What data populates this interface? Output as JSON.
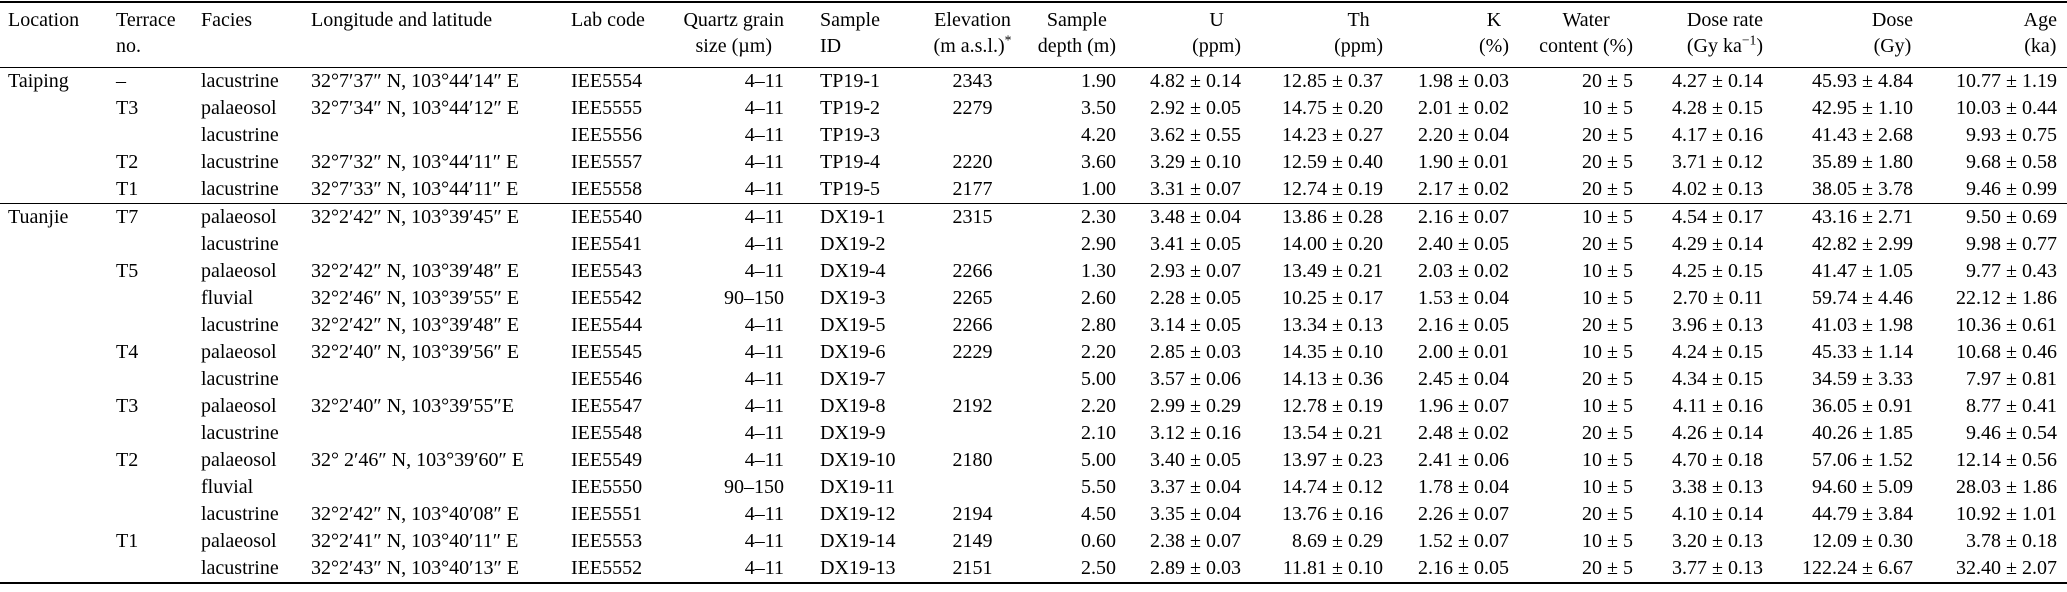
{
  "table": {
    "title": "Luminescence dating sample table",
    "group_separator_before_row_index": 5,
    "columns": [
      {
        "id": "location",
        "line1": "Location",
        "line2": "",
        "align": "left"
      },
      {
        "id": "terrace-no",
        "line1": "Terrace",
        "line2": "no.",
        "align": "left"
      },
      {
        "id": "facies",
        "line1": "Facies",
        "line2": "",
        "align": "left"
      },
      {
        "id": "coordinates",
        "line1": "Longitude and latitude",
        "line2": "",
        "align": "left"
      },
      {
        "id": "lab-code",
        "line1": "Lab code",
        "line2": "",
        "align": "left"
      },
      {
        "id": "grain-size",
        "line1": "Quartz grain",
        "line2": "size (µm)",
        "align": "right"
      },
      {
        "id": "sample-id",
        "line1": "Sample",
        "line2": "ID",
        "align": "left"
      },
      {
        "id": "elevation",
        "line1": "Elevation",
        "line2": "(m a.s.l.)",
        "line2_sup": "*",
        "align": "center"
      },
      {
        "id": "depth",
        "line1": "Sample",
        "line2": "depth (m)",
        "align": "right"
      },
      {
        "id": "u",
        "line1": "U",
        "line2": "(ppm)",
        "align": "right"
      },
      {
        "id": "th",
        "line1": "Th",
        "line2": "(ppm)",
        "align": "right"
      },
      {
        "id": "k",
        "line1": "K",
        "line2": "(%)",
        "align": "right"
      },
      {
        "id": "water-content",
        "line1": "Water",
        "line2": "content (%)",
        "align": "right"
      },
      {
        "id": "dose-rate",
        "line1": "Dose rate",
        "line2": "(Gy ka",
        "line2_sup": "−1",
        "line2_post": ")",
        "align": "right"
      },
      {
        "id": "dose",
        "line1": "Dose",
        "line2": "(Gy)",
        "align": "right"
      },
      {
        "id": "age",
        "line1": "Age",
        "line2": "(ka)",
        "align": "right"
      }
    ],
    "rows": [
      [
        "Taiping",
        "–",
        "lacustrine",
        "32°7′37″ N, 103°44′14″ E",
        "IEE5554",
        "4–11",
        "TP19-1",
        "2343",
        "1.90",
        "4.82 ± 0.14",
        "12.85 ± 0.37",
        "1.98 ± 0.03",
        "20 ± 5",
        "4.27 ± 0.14",
        "45.93 ± 4.84",
        "10.77 ± 1.19"
      ],
      [
        "",
        "T3",
        "palaeosol",
        "32°7′34″ N, 103°44′12″ E",
        "IEE5555",
        "4–11",
        "TP19-2",
        "2279",
        "3.50",
        "2.92 ± 0.05",
        "14.75 ± 0.20",
        "2.01 ± 0.02",
        "10 ± 5",
        "4.28 ± 0.15",
        "42.95 ± 1.10",
        "10.03 ± 0.44"
      ],
      [
        "",
        "",
        "lacustrine",
        "",
        "IEE5556",
        "4–11",
        "TP19-3",
        "",
        "4.20",
        "3.62 ± 0.55",
        "14.23 ± 0.27",
        "2.20 ± 0.04",
        "20 ± 5",
        "4.17 ± 0.16",
        "41.43 ± 2.68",
        "9.93 ± 0.75"
      ],
      [
        "",
        "T2",
        "lacustrine",
        "32°7′32″ N, 103°44′11″ E",
        "IEE5557",
        "4–11",
        "TP19-4",
        "2220",
        "3.60",
        "3.29 ± 0.10",
        "12.59 ± 0.40",
        "1.90 ± 0.01",
        "20 ± 5",
        "3.71 ± 0.12",
        "35.89 ± 1.80",
        "9.68 ± 0.58"
      ],
      [
        "",
        "T1",
        "lacustrine",
        "32°7′33″ N, 103°44′11″ E",
        "IEE5558",
        "4–11",
        "TP19-5",
        "2177",
        "1.00",
        "3.31 ± 0.07",
        "12.74 ± 0.19",
        "2.17 ± 0.02",
        "20 ± 5",
        "4.02 ± 0.13",
        "38.05 ± 3.78",
        "9.46 ± 0.99"
      ],
      [
        "Tuanjie",
        "T7",
        "palaeosol",
        "32°2′42″ N, 103°39′45″ E",
        "IEE5540",
        "4–11",
        "DX19-1",
        "2315",
        "2.30",
        "3.48 ± 0.04",
        "13.86 ± 0.28",
        "2.16 ± 0.07",
        "10 ± 5",
        "4.54 ± 0.17",
        "43.16 ± 2.71",
        "9.50 ± 0.69"
      ],
      [
        "",
        "",
        "lacustrine",
        "",
        "IEE5541",
        "4–11",
        "DX19-2",
        "",
        "2.90",
        "3.41 ± 0.05",
        "14.00 ± 0.20",
        "2.40 ± 0.05",
        "20 ± 5",
        "4.29 ± 0.14",
        "42.82 ± 2.99",
        "9.98 ± 0.77"
      ],
      [
        "",
        "T5",
        "palaeosol",
        "32°2′42″ N, 103°39′48″ E",
        "IEE5543",
        "4–11",
        "DX19-4",
        "2266",
        "1.30",
        "2.93 ± 0.07",
        "13.49 ± 0.21",
        "2.03 ± 0.02",
        "10 ± 5",
        "4.25 ± 0.15",
        "41.47 ± 1.05",
        "9.77 ± 0.43"
      ],
      [
        "",
        "",
        "fluvial",
        "32°2′46″ N, 103°39′55″ E",
        "IEE5542",
        "90–150",
        "DX19-3",
        "2265",
        "2.60",
        "2.28 ± 0.05",
        "10.25 ± 0.17",
        "1.53 ± 0.04",
        "10 ± 5",
        "2.70 ± 0.11",
        "59.74 ± 4.46",
        "22.12 ± 1.86"
      ],
      [
        "",
        "",
        "lacustrine",
        "32°2′42″ N, 103°39′48″ E",
        "IEE5544",
        "4–11",
        "DX19-5",
        "2266",
        "2.80",
        "3.14 ± 0.05",
        "13.34 ± 0.13",
        "2.16 ± 0.05",
        "20 ± 5",
        "3.96 ± 0.13",
        "41.03 ± 1.98",
        "10.36 ± 0.61"
      ],
      [
        "",
        "T4",
        "palaeosol",
        "32°2′40″ N, 103°39′56″ E",
        "IEE5545",
        "4–11",
        "DX19-6",
        "2229",
        "2.20",
        "2.85 ± 0.03",
        "14.35 ± 0.10",
        "2.00 ± 0.01",
        "10 ± 5",
        "4.24 ± 0.15",
        "45.33 ± 1.14",
        "10.68 ± 0.46"
      ],
      [
        "",
        "",
        "lacustrine",
        "",
        "IEE5546",
        "4–11",
        "DX19-7",
        "",
        "5.00",
        "3.57 ± 0.06",
        "14.13 ± 0.36",
        "2.45 ± 0.04",
        "20 ± 5",
        "4.34 ± 0.15",
        "34.59 ± 3.33",
        "7.97 ± 0.81"
      ],
      [
        "",
        "T3",
        "palaeosol",
        "32°2′40″ N, 103°39′55″E",
        "IEE5547",
        "4–11",
        "DX19-8",
        "2192",
        "2.20",
        "2.99 ± 0.29",
        "12.78 ± 0.19",
        "1.96 ± 0.07",
        "10 ± 5",
        "4.11 ± 0.16",
        "36.05 ± 0.91",
        "8.77 ± 0.41"
      ],
      [
        "",
        "",
        "lacustrine",
        "",
        "IEE5548",
        "4–11",
        "DX19-9",
        "",
        "2.10",
        "3.12 ± 0.16",
        "13.54 ± 0.21",
        "2.48 ± 0.02",
        "20 ± 5",
        "4.26 ± 0.14",
        "40.26 ± 1.85",
        "9.46 ± 0.54"
      ],
      [
        "",
        "T2",
        "palaeosol",
        "32° 2′46″ N, 103°39′60″ E",
        "IEE5549",
        "4–11",
        "DX19-10",
        "2180",
        "5.00",
        "3.40 ± 0.05",
        "13.97 ± 0.23",
        "2.41 ± 0.06",
        "10 ± 5",
        "4.70 ± 0.18",
        "57.06 ± 1.52",
        "12.14 ± 0.56"
      ],
      [
        "",
        "",
        "fluvial",
        "",
        "IEE5550",
        "90–150",
        "DX19-11",
        "",
        "5.50",
        "3.37 ± 0.04",
        "14.74 ± 0.12",
        "1.78 ± 0.04",
        "10 ± 5",
        "3.38 ± 0.13",
        "94.60 ± 5.09",
        "28.03 ± 1.86"
      ],
      [
        "",
        "",
        "lacustrine",
        "32°2′42″ N, 103°40′08″ E",
        "IEE5551",
        "4–11",
        "DX19-12",
        "2194",
        "4.50",
        "3.35 ± 0.04",
        "13.76 ± 0.16",
        "2.26 ± 0.07",
        "20 ± 5",
        "4.10 ± 0.14",
        "44.79 ± 3.84",
        "10.92 ± 1.01"
      ],
      [
        "",
        "T1",
        "palaeosol",
        "32°2′41″ N, 103°40′11″ E",
        "IEE5553",
        "4–11",
        "DX19-14",
        "2149",
        "0.60",
        "2.38 ± 0.07",
        "8.69 ± 0.29",
        "1.52 ± 0.07",
        "10 ± 5",
        "3.20 ± 0.13",
        "12.09 ± 0.30",
        "3.78 ± 0.18"
      ],
      [
        "",
        "",
        "lacustrine",
        "32°2′43″ N, 103°40′13″ E",
        "IEE5552",
        "4–11",
        "DX19-13",
        "2151",
        "2.50",
        "2.89 ± 0.03",
        "11.81 ± 0.10",
        "2.16 ± 0.05",
        "20 ± 5",
        "3.77 ± 0.13",
        "122.24 ± 6.67",
        "32.40 ± 2.07"
      ]
    ]
  }
}
